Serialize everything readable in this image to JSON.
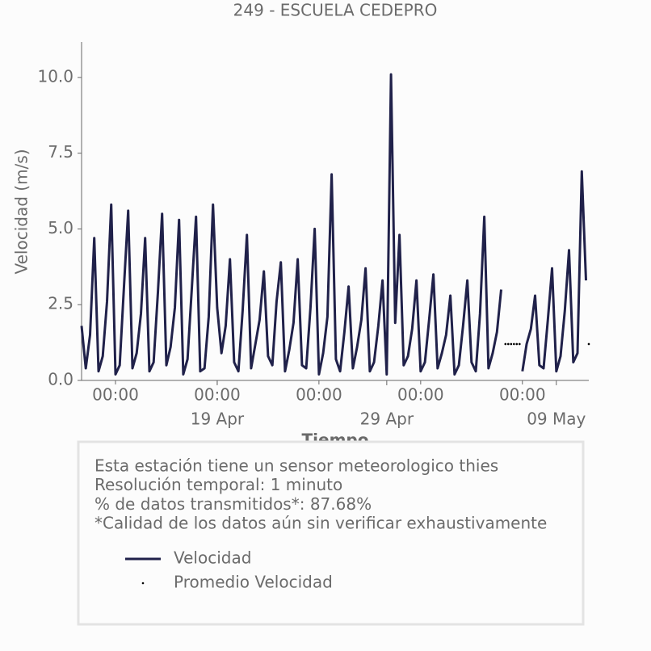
{
  "chart_data": {
    "type": "line",
    "title": "249 - ESCUELA CEDEPRO",
    "y_label": "Velocidad (m/s)",
    "x_label": "Tiempo",
    "xlim": [
      "04-11 00:00",
      "05-10 22:00"
    ],
    "xticks": [
      {
        "value": "04-13 00:00",
        "label": "00:00"
      },
      {
        "value": "04-19 00:00",
        "label": "00:00"
      },
      {
        "value": "04-25 00:00",
        "label": "00:00"
      },
      {
        "value": "05-01 00:00",
        "label": "00:00"
      },
      {
        "value": "05-07 00:00",
        "label": "00:00"
      }
    ],
    "xticks_dates": [
      {
        "value": "04-19 00:00",
        "label": "19 Apr"
      },
      {
        "value": "04-29 00:00",
        "label": "29 Apr"
      },
      {
        "value": "05-09 00:00",
        "label": "09 May"
      }
    ],
    "ylim": [
      0,
      11.17
    ],
    "yticks": [
      {
        "value": 0,
        "label": "0.0"
      },
      {
        "value": 2.5,
        "label": "2.5"
      },
      {
        "value": 5,
        "label": "5.0"
      },
      {
        "value": 7.5,
        "label": "7.5"
      },
      {
        "value": 10,
        "label": "10.0"
      }
    ],
    "notes": [
      "Esta estación tiene un sensor meteorologico thies",
      "Resolución temporal: 1 minuto",
      "% de datos transmitidos*: 87.68%",
      "*Calidad de los datos aún sin verificar exhaustivamente"
    ],
    "series": [
      {
        "name": "Velocidad",
        "color": "#20214a",
        "style": "line",
        "x": [
          "04-11 00:00",
          "04-11 06:00",
          "04-11 12:00",
          "04-11 18:00",
          "04-12 00:00",
          "04-12 06:00",
          "04-12 12:00",
          "04-12 18:00",
          "04-13 00:00",
          "04-13 06:00",
          "04-13 12:00",
          "04-13 18:00",
          "04-14 00:00",
          "04-14 06:00",
          "04-14 12:00",
          "04-14 18:00",
          "04-15 00:00",
          "04-15 06:00",
          "04-15 12:00",
          "04-15 18:00",
          "04-16 00:00",
          "04-16 06:00",
          "04-16 12:00",
          "04-16 18:00",
          "04-17 00:00",
          "04-17 06:00",
          "04-17 12:00",
          "04-17 18:00",
          "04-18 00:00",
          "04-18 06:00",
          "04-18 12:00",
          "04-18 18:00",
          "04-19 00:00",
          "04-19 06:00",
          "04-19 12:00",
          "04-19 18:00",
          "04-20 00:00",
          "04-20 06:00",
          "04-20 12:00",
          "04-20 18:00",
          "04-21 00:00",
          "04-21 06:00",
          "04-21 12:00",
          "04-21 18:00",
          "04-22 00:00",
          "04-22 06:00",
          "04-22 12:00",
          "04-22 18:00",
          "04-23 00:00",
          "04-23 06:00",
          "04-23 12:00",
          "04-23 18:00",
          "04-24 00:00",
          "04-24 06:00",
          "04-24 12:00",
          "04-24 18:00",
          "04-25 00:00",
          "04-25 06:00",
          "04-25 12:00",
          "04-25 18:00",
          "04-26 00:00",
          "04-26 06:00",
          "04-26 12:00",
          "04-26 18:00",
          "04-27 00:00",
          "04-27 06:00",
          "04-27 12:00",
          "04-27 18:00",
          "04-28 00:00",
          "04-28 06:00",
          "04-28 12:00",
          "04-28 18:00",
          "04-29 00:00",
          "04-29 06:00",
          "04-29 12:00",
          "04-29 18:00",
          "04-30 00:00",
          "04-30 06:00",
          "04-30 12:00",
          "04-30 18:00",
          "05-01 00:00",
          "05-01 06:00",
          "05-01 12:00",
          "05-01 18:00",
          "05-02 00:00",
          "05-02 06:00",
          "05-02 12:00",
          "05-02 18:00",
          "05-03 00:00",
          "05-03 06:00",
          "05-03 12:00",
          "05-03 18:00",
          "05-04 00:00",
          "05-04 06:00",
          "05-04 12:00",
          "05-04 18:00",
          "05-05 00:00",
          "05-05 06:00",
          "05-05 12:00",
          "05-05 18:00",
          "05-06 00:00",
          "05-06 06:00",
          "05-06 12:00",
          "05-06 18:00",
          "05-07 00:00",
          "05-07 06:00",
          "05-07 12:00",
          "05-07 18:00",
          "05-08 00:00",
          "05-08 06:00",
          "05-08 12:00",
          "05-08 18:00",
          "05-09 00:00",
          "05-09 06:00",
          "05-09 12:00",
          "05-09 18:00",
          "05-10 00:00",
          "05-10 06:00",
          "05-10 12:00",
          "05-10 18:00"
        ],
        "values": [
          1.8,
          0.4,
          1.5,
          4.7,
          0.3,
          0.8,
          2.6,
          5.8,
          0.2,
          0.5,
          3.1,
          5.6,
          0.4,
          0.9,
          2.2,
          4.7,
          0.3,
          0.6,
          2.9,
          5.5,
          0.5,
          1.1,
          2.4,
          5.3,
          0.2,
          0.7,
          3.0,
          5.4,
          0.3,
          0.4,
          2.1,
          5.8,
          2.4,
          0.9,
          1.8,
          4.0,
          0.6,
          0.3,
          2.3,
          4.8,
          0.4,
          1.2,
          2.0,
          3.6,
          0.8,
          0.5,
          2.6,
          3.9,
          0.3,
          1.0,
          1.9,
          4.0,
          0.5,
          0.4,
          2.4,
          5.0,
          0.2,
          0.9,
          2.1,
          6.8,
          0.7,
          0.3,
          1.6,
          3.1,
          0.4,
          1.1,
          2.0,
          3.7,
          0.3,
          0.6,
          1.8,
          3.3,
          0.2,
          10.1,
          1.9,
          4.8,
          0.5,
          0.8,
          1.7,
          3.3,
          0.3,
          0.6,
          2.0,
          3.5,
          0.4,
          0.9,
          1.5,
          2.8,
          0.2,
          0.5,
          1.8,
          3.3,
          0.6,
          0.3,
          2.2,
          5.4,
          0.4,
          0.9,
          1.6,
          3.0,
          null,
          null,
          null,
          null,
          0.3,
          1.2,
          1.7,
          2.8,
          0.5,
          0.4,
          2.0,
          3.7,
          0.3,
          0.8,
          2.3,
          4.3,
          0.6,
          0.9,
          6.9,
          3.3
        ]
      },
      {
        "name": "Promedio Velocidad",
        "color": "#000000",
        "style": "dots",
        "x": [
          "05-06 00:00",
          "05-06 04:00",
          "05-06 08:00",
          "05-06 12:00",
          "05-06 16:00",
          "05-06 20:00",
          "05-10 22:00"
        ],
        "values": [
          1.2,
          1.2,
          1.2,
          1.2,
          1.2,
          1.2,
          1.2
        ]
      }
    ]
  }
}
